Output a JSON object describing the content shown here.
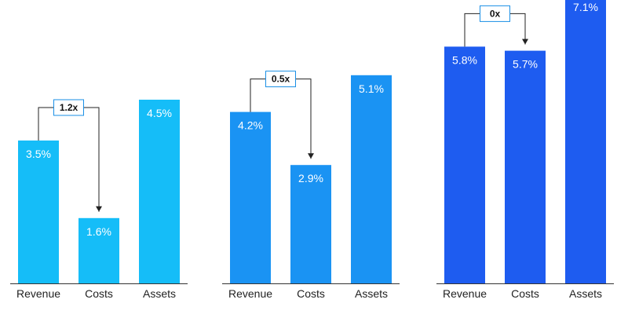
{
  "colors": {
    "panel_1": "#15bdf8",
    "panel_2": "#1a93f3",
    "panel_3": "#1e5cf0",
    "axis": "#333333",
    "connector": "#222222",
    "box_border": "#1a8fe6"
  },
  "chart_data": [
    {
      "type": "bar",
      "categories": [
        "Revenue",
        "Costs",
        "Assets"
      ],
      "values": [
        3.5,
        1.6,
        4.5
      ],
      "value_labels": [
        "3.5%",
        "1.6%",
        "4.5%"
      ],
      "annotation": {
        "from": "Revenue",
        "to": "Costs",
        "label": "1.2x"
      },
      "ylim": [
        0,
        8
      ],
      "grid": false
    },
    {
      "type": "bar",
      "categories": [
        "Revenue",
        "Costs",
        "Assets"
      ],
      "values": [
        4.2,
        2.9,
        5.1
      ],
      "value_labels": [
        "4.2%",
        "2.9%",
        "5.1%"
      ],
      "annotation": {
        "from": "Revenue",
        "to": "Costs",
        "label": "0.5x"
      },
      "ylim": [
        0,
        8
      ],
      "grid": false
    },
    {
      "type": "bar",
      "categories": [
        "Revenue",
        "Costs",
        "Assets"
      ],
      "values": [
        5.8,
        5.7,
        7.1
      ],
      "value_labels": [
        "5.8%",
        "5.7%",
        "7.1%"
      ],
      "annotation": {
        "from": "Revenue",
        "to": "Costs",
        "label": "0x"
      },
      "ylim": [
        0,
        8
      ],
      "grid": false
    }
  ]
}
